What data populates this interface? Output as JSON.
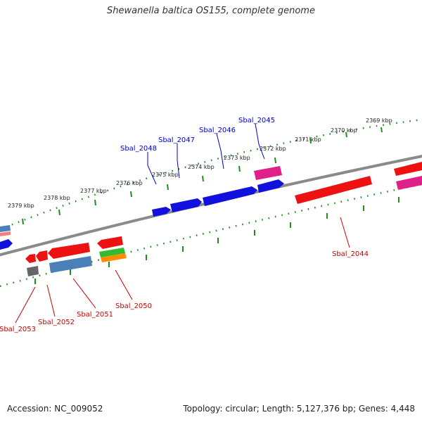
{
  "title": "Shewanella baltica OS155, complete genome",
  "footer": {
    "accession": "Accession: NC_009052",
    "summary": "Topology: circular; Length: 5,127,376 bp; Genes: 4,448"
  },
  "colors": {
    "background": "#ffffff",
    "backbone": "#8a8a8a",
    "ticks": "#228b22",
    "forward_label": "#0000cc",
    "reverse_label": "#cc0000",
    "red_gene": "#ee1111",
    "blue_gene": "#1111dd",
    "pink_gene": "#e0208a",
    "steelblue_gene": "#4a7fb8",
    "green_gene": "#33bb33",
    "orange_gene": "#ff8c00",
    "gray_gene": "#666666"
  },
  "ticks": [
    "2369 kbp",
    "2370 kbp",
    "2371 kbp",
    "2372 kbp",
    "2373 kbp",
    "2374 kbp",
    "2375 kbp",
    "2376 kbp",
    "2377 kbp",
    "2378 kbp",
    "2379 kbp"
  ],
  "forward_labels": [
    "Sbal_2045",
    "Sbal_2046",
    "Sbal_2047",
    "Sbal_2048"
  ],
  "reverse_labels": [
    "Sbal_2044",
    "Sbal_2050",
    "Sbal_2051",
    "Sbal_2052",
    "Sbal_2053"
  ]
}
